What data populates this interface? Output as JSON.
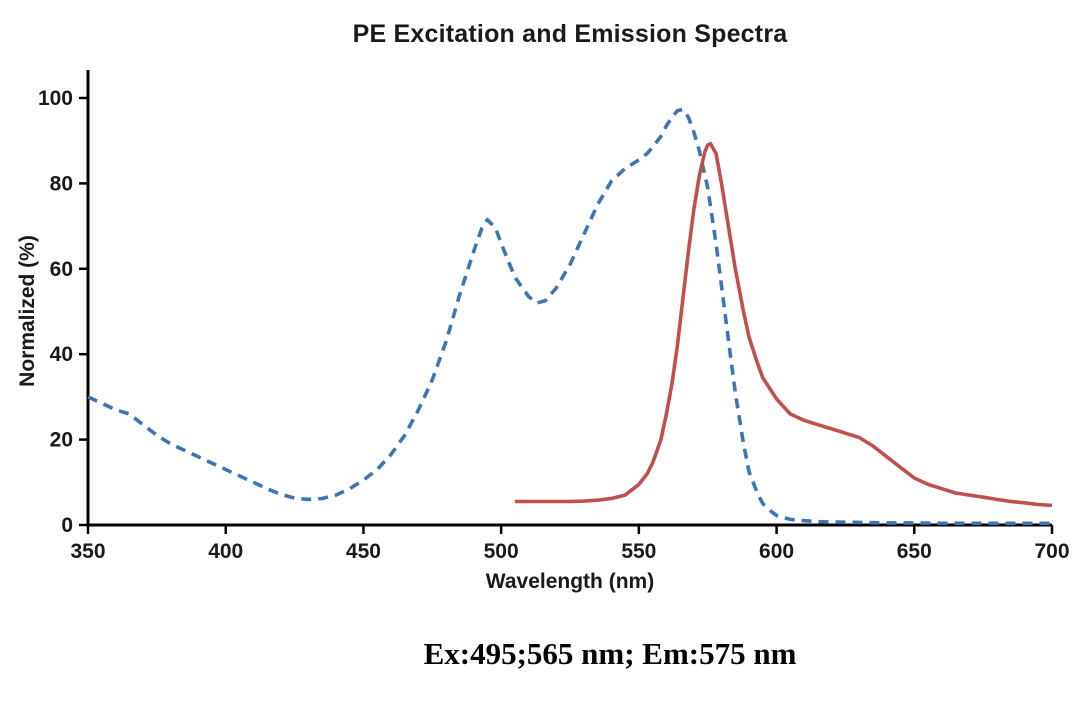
{
  "caption": "Ex:495;565 nm; Em:575 nm",
  "chart_data": {
    "type": "line",
    "title": "PE Excitation and Emission Spectra",
    "xlabel": "Wavelength (nm)",
    "ylabel": "Normalized (%)",
    "xlim": [
      350,
      700
    ],
    "ylim": [
      0,
      100
    ],
    "x_ticks": [
      350,
      400,
      450,
      500,
      550,
      600,
      650,
      700
    ],
    "y_ticks": [
      0,
      20,
      40,
      60,
      80,
      100
    ],
    "grid": false,
    "legend_position": "none",
    "axis_color": "#000000",
    "series": [
      {
        "name": "Excitation",
        "color": "#3f74b5",
        "style": "dashed",
        "points": [
          [
            350,
            30
          ],
          [
            355,
            28.5
          ],
          [
            360,
            27
          ],
          [
            365,
            26
          ],
          [
            370,
            23.5
          ],
          [
            375,
            21
          ],
          [
            380,
            19
          ],
          [
            385,
            17.5
          ],
          [
            390,
            16
          ],
          [
            395,
            14.5
          ],
          [
            400,
            13
          ],
          [
            405,
            11.5
          ],
          [
            410,
            10
          ],
          [
            415,
            8.5
          ],
          [
            420,
            7.2
          ],
          [
            425,
            6.3
          ],
          [
            430,
            6
          ],
          [
            435,
            6.2
          ],
          [
            440,
            7
          ],
          [
            445,
            8.5
          ],
          [
            450,
            10.5
          ],
          [
            455,
            13
          ],
          [
            460,
            16.5
          ],
          [
            465,
            21
          ],
          [
            470,
            27
          ],
          [
            475,
            34
          ],
          [
            480,
            43
          ],
          [
            485,
            54
          ],
          [
            490,
            64
          ],
          [
            493,
            69.5
          ],
          [
            495,
            71.5
          ],
          [
            498,
            69.5
          ],
          [
            500,
            66
          ],
          [
            505,
            58
          ],
          [
            510,
            53.5
          ],
          [
            513,
            52
          ],
          [
            516,
            52.5
          ],
          [
            520,
            55.5
          ],
          [
            525,
            61
          ],
          [
            530,
            68
          ],
          [
            535,
            75
          ],
          [
            540,
            80.5
          ],
          [
            545,
            83.5
          ],
          [
            550,
            85.5
          ],
          [
            553,
            87
          ],
          [
            555,
            88.5
          ],
          [
            558,
            91
          ],
          [
            560,
            93.5
          ],
          [
            562,
            95.5
          ],
          [
            564,
            97
          ],
          [
            566,
            97.3
          ],
          [
            568,
            95.5
          ],
          [
            570,
            92
          ],
          [
            572,
            87.5
          ],
          [
            575,
            79
          ],
          [
            578,
            66
          ],
          [
            580,
            56
          ],
          [
            583,
            41
          ],
          [
            585,
            31
          ],
          [
            588,
            19
          ],
          [
            590,
            12.5
          ],
          [
            593,
            7.5
          ],
          [
            595,
            5
          ],
          [
            598,
            3.2
          ],
          [
            600,
            2.2
          ],
          [
            605,
            1.3
          ],
          [
            610,
            1
          ],
          [
            615,
            0.8
          ],
          [
            620,
            0.7
          ],
          [
            630,
            0.6
          ],
          [
            640,
            0.5
          ],
          [
            650,
            0.5
          ],
          [
            660,
            0.4
          ],
          [
            670,
            0.4
          ],
          [
            680,
            0.4
          ],
          [
            690,
            0.4
          ],
          [
            700,
            0.4
          ]
        ]
      },
      {
        "name": "Emission",
        "color": "#c0504d",
        "style": "solid",
        "points": [
          [
            505,
            5.5
          ],
          [
            510,
            5.5
          ],
          [
            515,
            5.5
          ],
          [
            520,
            5.5
          ],
          [
            525,
            5.5
          ],
          [
            530,
            5.6
          ],
          [
            535,
            5.8
          ],
          [
            540,
            6.2
          ],
          [
            545,
            7
          ],
          [
            550,
            9.5
          ],
          [
            553,
            12
          ],
          [
            555,
            14.5
          ],
          [
            558,
            20
          ],
          [
            560,
            26
          ],
          [
            562,
            33
          ],
          [
            564,
            42
          ],
          [
            566,
            53
          ],
          [
            568,
            64
          ],
          [
            570,
            74
          ],
          [
            572,
            82
          ],
          [
            574,
            87.5
          ],
          [
            575,
            89
          ],
          [
            576,
            89.3
          ],
          [
            578,
            87
          ],
          [
            580,
            80
          ],
          [
            582,
            72
          ],
          [
            585,
            60
          ],
          [
            588,
            50
          ],
          [
            590,
            44
          ],
          [
            593,
            38
          ],
          [
            595,
            34.5
          ],
          [
            600,
            29.5
          ],
          [
            605,
            26
          ],
          [
            610,
            24.5
          ],
          [
            615,
            23.5
          ],
          [
            620,
            22.5
          ],
          [
            625,
            21.5
          ],
          [
            630,
            20.5
          ],
          [
            635,
            18.5
          ],
          [
            640,
            16
          ],
          [
            645,
            13.5
          ],
          [
            650,
            11
          ],
          [
            655,
            9.5
          ],
          [
            660,
            8.5
          ],
          [
            665,
            7.5
          ],
          [
            670,
            7
          ],
          [
            675,
            6.5
          ],
          [
            680,
            6
          ],
          [
            685,
            5.5
          ],
          [
            690,
            5.2
          ],
          [
            695,
            4.8
          ],
          [
            700,
            4.6
          ]
        ]
      }
    ]
  }
}
